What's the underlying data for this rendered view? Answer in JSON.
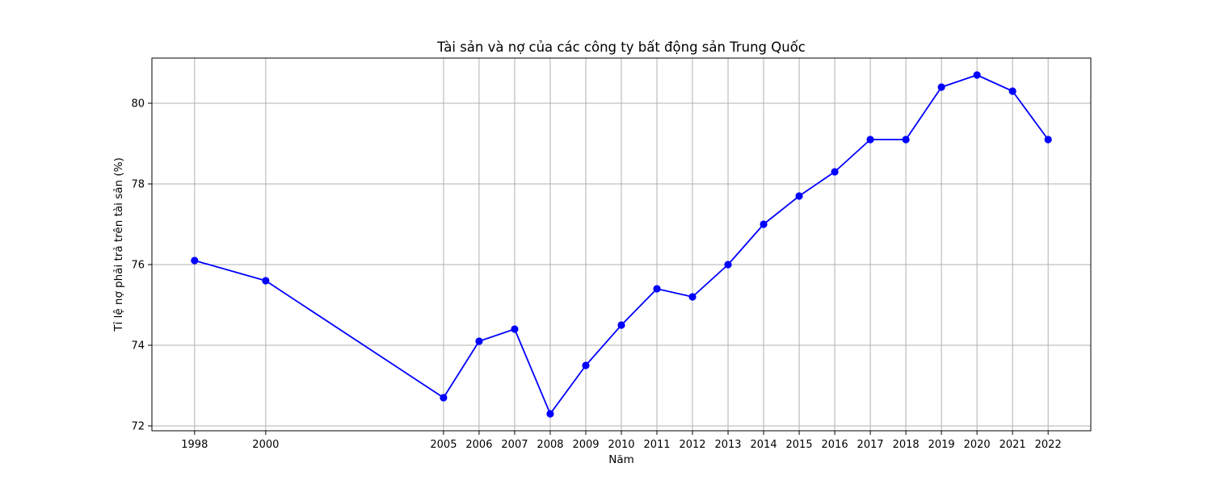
{
  "chart_data": {
    "type": "line",
    "title": "Tài sản và nợ của các công ty bất động sản Trung Quốc",
    "xlabel": "Năm",
    "ylabel": "Tỉ lệ nợ phải trả trên tài sản (%)",
    "x": [
      1998,
      2000,
      2005,
      2006,
      2007,
      2008,
      2009,
      2010,
      2011,
      2012,
      2013,
      2014,
      2015,
      2016,
      2017,
      2018,
      2019,
      2020,
      2021,
      2022
    ],
    "series": [
      {
        "values": [
          76.1,
          75.6,
          72.7,
          74.1,
          74.4,
          72.3,
          73.5,
          74.5,
          75.4,
          75.2,
          76.0,
          77.0,
          77.7,
          78.3,
          79.1,
          79.1,
          80.4,
          80.7,
          80.3,
          79.1
        ],
        "color": "#0000ff",
        "marker": "circle"
      }
    ],
    "xticks": [
      "1998",
      "2000",
      "2005",
      "2006",
      "2007",
      "2008",
      "2009",
      "2010",
      "2011",
      "2012",
      "2013",
      "2014",
      "2015",
      "2016",
      "2017",
      "2018",
      "2019",
      "2020",
      "2021",
      "2022"
    ],
    "yticks": [
      "72",
      "74",
      "76",
      "78",
      "80"
    ],
    "xlim": [
      1996.8,
      2023.2
    ],
    "ylim": [
      71.88,
      81.12
    ],
    "grid": true,
    "legend": "none"
  }
}
